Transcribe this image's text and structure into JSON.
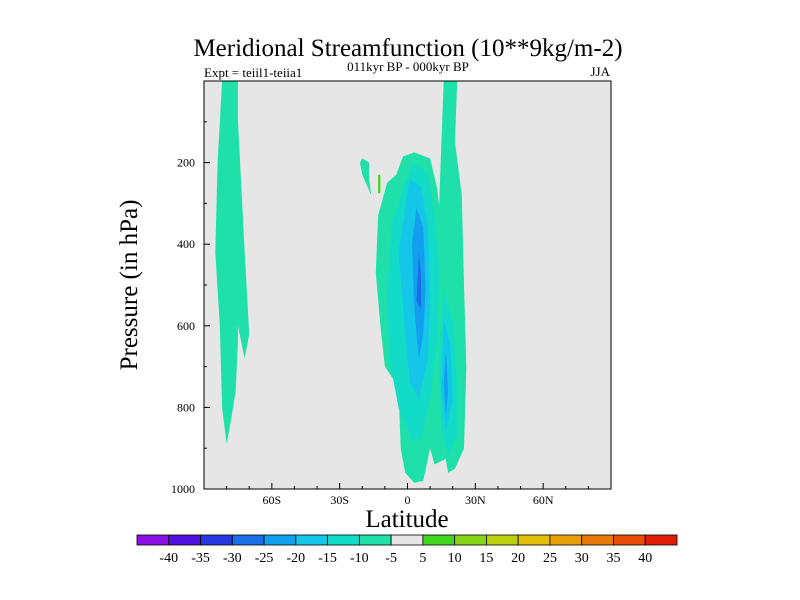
{
  "chart_data": {
    "type": "heatmap",
    "title": "Meridional Streamfunction (10**9kg/m-2)",
    "subtitle": "011kyr BP - 000kyr BP",
    "left_label": "Expt = teiil1-teiia1",
    "right_label": "JJA",
    "xlabel": "Latitude",
    "ylabel": "Pressure (in hPa)",
    "xlim": [
      -90,
      90
    ],
    "ylim": [
      1000,
      0
    ],
    "y_reversed": true,
    "x_ticks": [
      {
        "value": -60,
        "label": "60S"
      },
      {
        "value": -30,
        "label": "30S"
      },
      {
        "value": 0,
        "label": "0"
      },
      {
        "value": 30,
        "label": "30N"
      },
      {
        "value": 60,
        "label": "60N"
      }
    ],
    "y_ticks": [
      {
        "value": 200,
        "label": "200"
      },
      {
        "value": 400,
        "label": "400"
      },
      {
        "value": 600,
        "label": "600"
      },
      {
        "value": 800,
        "label": "800"
      },
      {
        "value": 1000,
        "label": "1000"
      }
    ],
    "background_color": "#e6e6e6",
    "colorbar": {
      "labels": [
        "-40",
        "-35",
        "-30",
        "-25",
        "-20",
        "-15",
        "-10",
        "-5",
        "5",
        "10",
        "15",
        "20",
        "25",
        "30",
        "35",
        "40"
      ],
      "colors": [
        "#8b10e8",
        "#5010e0",
        "#2838e0",
        "#1a6ee8",
        "#12a0ee",
        "#14c6e8",
        "#12dcc8",
        "#1ee0a8",
        "#e6e6e6",
        "#40d620",
        "#88d418",
        "#bcd010",
        "#e0c008",
        "#e8a008",
        "#e87808",
        "#e84c08",
        "#e01e08"
      ]
    },
    "regions": [
      {
        "level": "-10 to -5",
        "color": "#1ee0a8",
        "points": [
          [
            -80,
            0
          ],
          [
            -75,
            0
          ],
          [
            -75,
            95
          ],
          [
            -72,
            420
          ],
          [
            -70,
            620
          ],
          [
            -72,
            680
          ],
          [
            -75,
            600
          ],
          [
            -75,
            640
          ],
          [
            -76,
            760
          ],
          [
            -78,
            830
          ],
          [
            -80,
            890
          ],
          [
            -82,
            800
          ],
          [
            -83,
            600
          ],
          [
            -85,
            420
          ],
          [
            -84,
            200
          ],
          [
            -82,
            0
          ]
        ]
      },
      {
        "level": "-10 to -5",
        "color": "#1ee0a8",
        "points": [
          [
            -20,
            190
          ],
          [
            -17,
            200
          ],
          [
            -17,
            240
          ],
          [
            -16,
            280
          ],
          [
            -20,
            230
          ],
          [
            -21,
            200
          ]
        ]
      },
      {
        "level": "-10 to -5",
        "color": "#1ee0a8",
        "points": [
          [
            16,
            0
          ],
          [
            22,
            0
          ],
          [
            21,
            150
          ],
          [
            24,
            280
          ],
          [
            25,
            500
          ],
          [
            26,
            700
          ],
          [
            25,
            900
          ],
          [
            21,
            950
          ],
          [
            18,
            960
          ],
          [
            16,
            900
          ],
          [
            14,
            700
          ],
          [
            13,
            450
          ]
        ]
      },
      {
        "level": "-10 to -5",
        "color": "#1ee0a8",
        "points": [
          [
            -5,
            230
          ],
          [
            -2,
            185
          ],
          [
            3,
            175
          ],
          [
            10,
            190
          ],
          [
            13,
            260
          ],
          [
            16,
            400
          ],
          [
            19,
            700
          ],
          [
            19,
            920
          ],
          [
            12,
            940
          ],
          [
            10,
            900
          ],
          [
            7,
            980
          ],
          [
            3,
            985
          ],
          [
            -1,
            960
          ],
          [
            -3,
            900
          ],
          [
            -4,
            750
          ],
          [
            -10,
            700
          ],
          [
            -12,
            600
          ],
          [
            -14,
            470
          ],
          [
            -13,
            330
          ],
          [
            -9,
            250
          ]
        ]
      },
      {
        "level": "-15 to -10",
        "color": "#12dcc8",
        "points": [
          [
            -1,
            250
          ],
          [
            3,
            200
          ],
          [
            9,
            230
          ],
          [
            12,
            330
          ],
          [
            14,
            470
          ],
          [
            13,
            640
          ],
          [
            10,
            780
          ],
          [
            6,
            880
          ],
          [
            2,
            880
          ],
          [
            -4,
            800
          ],
          [
            -8,
            680
          ],
          [
            -9,
            520
          ],
          [
            -7,
            350
          ]
        ]
      },
      {
        "level": "-15 to -10",
        "color": "#12dcc8",
        "points": [
          [
            16,
            510
          ],
          [
            20,
            590
          ],
          [
            22,
            740
          ],
          [
            22,
            870
          ],
          [
            18,
            920
          ],
          [
            15,
            850
          ],
          [
            14,
            690
          ]
        ]
      },
      {
        "level": "-20 to -15",
        "color": "#14c6e8",
        "points": [
          [
            1,
            240
          ],
          [
            6,
            260
          ],
          [
            9,
            360
          ],
          [
            10,
            530
          ],
          [
            9,
            680
          ],
          [
            5,
            780
          ],
          [
            1,
            740
          ],
          [
            -2,
            550
          ],
          [
            -4,
            420
          ]
        ]
      },
      {
        "level": "-20 to -15",
        "color": "#14c6e8",
        "points": [
          [
            16,
            580
          ],
          [
            19,
            650
          ],
          [
            20,
            780
          ],
          [
            17,
            860
          ],
          [
            15,
            760
          ]
        ]
      },
      {
        "level": "-25 to -20",
        "color": "#12a0ee",
        "points": [
          [
            4,
            310
          ],
          [
            7,
            360
          ],
          [
            8,
            510
          ],
          [
            7,
            620
          ],
          [
            5,
            680
          ],
          [
            3,
            560
          ],
          [
            2,
            400
          ]
        ]
      },
      {
        "level": "-25 to -20",
        "color": "#12a0ee",
        "points": [
          [
            17,
            660
          ],
          [
            18,
            760
          ],
          [
            17,
            820
          ],
          [
            16,
            740
          ]
        ]
      },
      {
        "level": "-30 to -25",
        "color": "#1a6ee8",
        "points": [
          [
            5,
            420
          ],
          [
            6,
            470
          ],
          [
            6,
            560
          ],
          [
            4,
            540
          ]
        ]
      },
      {
        "level": "5 to 10",
        "color": "#40d620",
        "points": [
          [
            -13,
            230
          ],
          [
            -12,
            230
          ],
          [
            -12,
            275
          ],
          [
            -13,
            275
          ]
        ]
      }
    ]
  }
}
